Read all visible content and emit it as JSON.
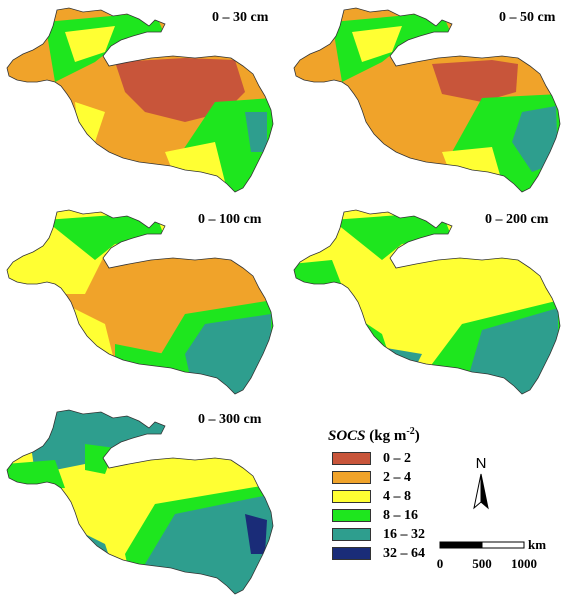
{
  "panels": [
    {
      "depth": "0 – 30 cm"
    },
    {
      "depth": "0 – 50 cm"
    },
    {
      "depth": "0 – 100 cm"
    },
    {
      "depth": "0 – 200 cm"
    },
    {
      "depth": "0 – 300 cm"
    }
  ],
  "legend": {
    "title_var": "SOCS",
    "title_unit": "(kg m",
    "title_exp": "-2",
    "title_close": ")",
    "classes": [
      {
        "label": "0 – 2",
        "color": "#c8553a"
      },
      {
        "label": "2 – 4",
        "color": "#f0a32a"
      },
      {
        "label": "4 – 8",
        "color": "#ffff33"
      },
      {
        "label": "8 – 16",
        "color": "#1ee61e"
      },
      {
        "label": "16 – 32",
        "color": "#2e9e8e"
      },
      {
        "label": "32 – 64",
        "color": "#1a2c78"
      }
    ]
  },
  "north_arrow": {
    "label": "N"
  },
  "scale_bar": {
    "unit": "km",
    "ticks": [
      "0",
      "500",
      "1000"
    ]
  },
  "icons": [
    "north-arrow-icon"
  ]
}
